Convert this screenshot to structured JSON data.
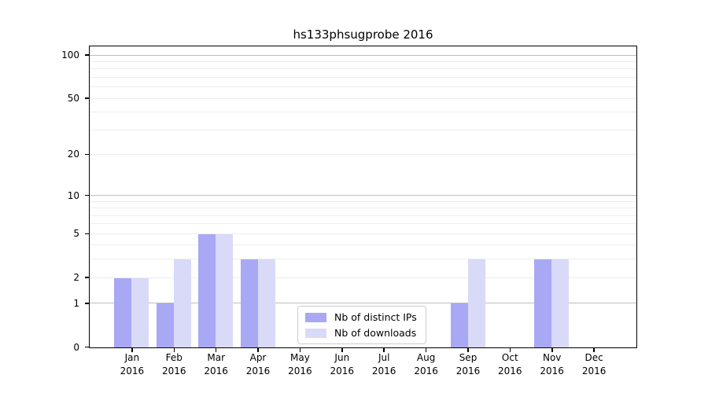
{
  "title": "hs133phsugprobe 2016",
  "colors": {
    "bar_distinct_ips": "#a8a8f5",
    "bar_downloads": "#d9d9f8",
    "grid_major": "#bdbdbd",
    "grid_minor": "#ededed",
    "axis": "#000000",
    "legend_border": "#cccccc",
    "text": "#000000"
  },
  "legend": {
    "items": [
      {
        "label": "Nb of distinct IPs",
        "color": "#a8a8f5"
      },
      {
        "label": "Nb of downloads",
        "color": "#d9d9f8"
      }
    ]
  },
  "chart_data": {
    "type": "bar",
    "title": "hs133phsugprobe 2016",
    "categories": [
      "Jan 2016",
      "Feb 2016",
      "Mar 2016",
      "Apr 2016",
      "May 2016",
      "Jun 2016",
      "Jul 2016",
      "Aug 2016",
      "Sep 2016",
      "Oct 2016",
      "Nov 2016",
      "Dec 2016"
    ],
    "series": [
      {
        "name": "Nb of distinct IPs",
        "values": [
          2,
          1,
          5,
          3,
          0,
          0,
          0,
          0,
          1,
          0,
          3,
          0
        ]
      },
      {
        "name": "Nb of downloads",
        "values": [
          2,
          3,
          5,
          3,
          0,
          0,
          0,
          0,
          3,
          0,
          3,
          0
        ]
      }
    ],
    "xlabel": "",
    "ylabel": "",
    "yscale": "log1p",
    "ylim": [
      0,
      117
    ],
    "yticks": [
      0,
      1,
      2,
      5,
      10,
      20,
      50,
      100
    ],
    "ytick_labels": [
      "0",
      "1",
      "2",
      "5",
      "10",
      "20",
      "50",
      "100"
    ],
    "minor_gridlines": [
      2,
      3,
      4,
      5,
      6,
      7,
      8,
      9,
      20,
      30,
      40,
      50,
      60,
      70,
      80,
      90
    ],
    "major_gridlines": [
      1,
      10,
      100
    ],
    "grid": true,
    "legend_position": "lower center"
  }
}
